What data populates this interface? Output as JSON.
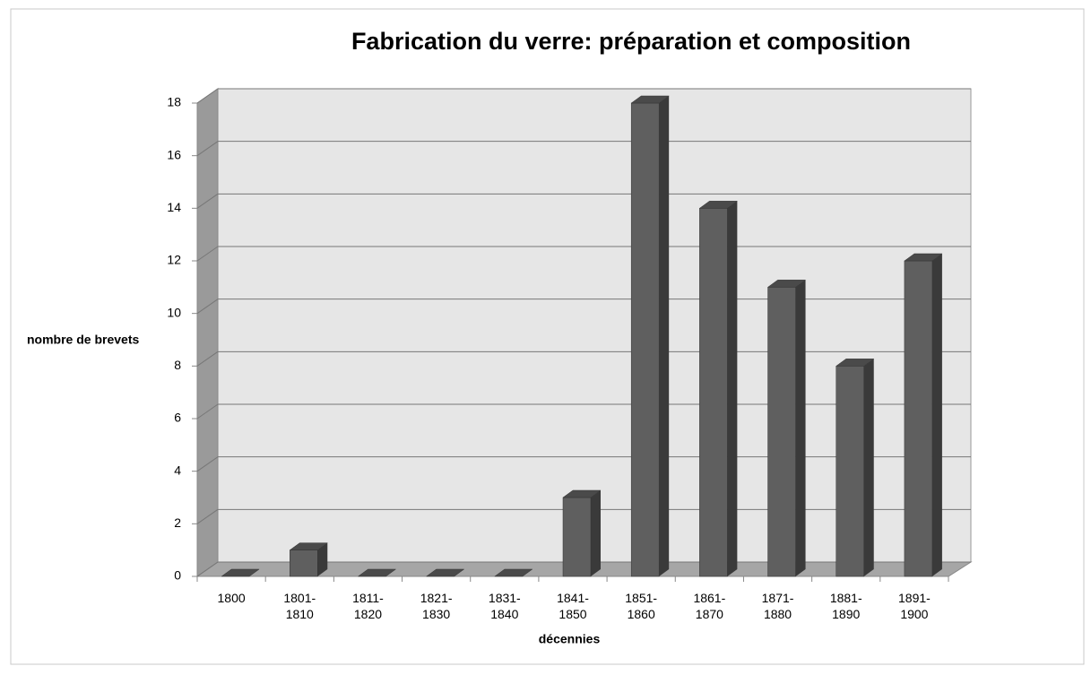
{
  "chart_data": {
    "type": "bar3d",
    "title": "Fabrication du verre: préparation et composition",
    "x_label": "décennies",
    "y_label": "nombre de brevets",
    "categories": [
      "1800",
      "1801-1810",
      "1811-1820",
      "1821-1830",
      "1831-1840",
      "1841-1850",
      "1851-1860",
      "1861-1870",
      "1871-1880",
      "1881-1890",
      "1891-1900"
    ],
    "values": [
      0,
      1,
      0,
      0,
      0,
      3,
      18,
      14,
      11,
      8,
      12
    ],
    "color": "#5f5f5f",
    "ylim": [
      0,
      18
    ],
    "yticks": [
      0,
      2,
      4,
      6,
      8,
      10,
      12,
      14,
      16,
      18
    ],
    "grid": true
  }
}
